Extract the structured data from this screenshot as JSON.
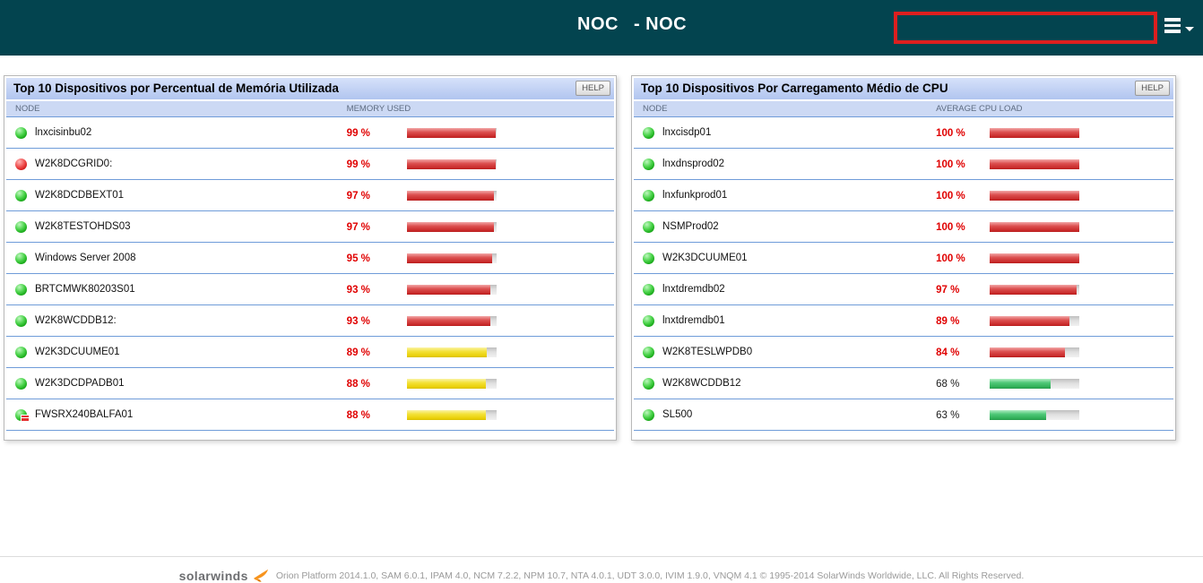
{
  "header": {
    "title": "NOC",
    "subtitle": "- NOC"
  },
  "panels": [
    {
      "title": "Top 10 Dispositivos por Percentual de Memória Utilizada",
      "help_label": "HELP",
      "columns": [
        "NODE",
        "MEMORY USED"
      ],
      "rows": [
        {
          "node": "lnxcisinbu02",
          "status": "up",
          "badge": false,
          "value": "99 %",
          "pct": 99,
          "bar": "red",
          "critical": true
        },
        {
          "node": "W2K8DCGRID0:",
          "status": "down",
          "badge": false,
          "value": "99 %",
          "pct": 99,
          "bar": "red",
          "critical": true
        },
        {
          "node": "W2K8DCDBEXT01",
          "status": "up",
          "badge": false,
          "value": "97 %",
          "pct": 97,
          "bar": "red",
          "critical": true
        },
        {
          "node": "W2K8TESTOHDS03",
          "status": "up",
          "badge": false,
          "value": "97 %",
          "pct": 97,
          "bar": "red",
          "critical": true
        },
        {
          "node": "Windows Server 2008",
          "status": "up",
          "badge": false,
          "value": "95 %",
          "pct": 95,
          "bar": "red",
          "critical": true
        },
        {
          "node": "BRTCMWK80203S01",
          "status": "up",
          "badge": false,
          "value": "93 %",
          "pct": 93,
          "bar": "red",
          "critical": true
        },
        {
          "node": "W2K8WCDDB12:",
          "status": "up",
          "badge": false,
          "value": "93 %",
          "pct": 93,
          "bar": "red",
          "critical": true
        },
        {
          "node": "W2K3DCUUME01",
          "status": "up",
          "badge": false,
          "value": "89 %",
          "pct": 89,
          "bar": "yellow",
          "critical": true
        },
        {
          "node": "W2K3DCDPADB01",
          "status": "up",
          "badge": false,
          "value": "88 %",
          "pct": 88,
          "bar": "yellow",
          "critical": true
        },
        {
          "node": "FWSRX240BALFA01",
          "status": "up",
          "badge": true,
          "value": "88 %",
          "pct": 88,
          "bar": "yellow",
          "critical": true
        }
      ]
    },
    {
      "title": "Top 10 Dispositivos Por Carregamento Médio de CPU",
      "help_label": "HELP",
      "columns": [
        "NODE",
        "AVERAGE CPU LOAD"
      ],
      "rows": [
        {
          "node": "lnxcisdp01",
          "status": "up",
          "badge": false,
          "value": "100 %",
          "pct": 100,
          "bar": "red",
          "critical": true
        },
        {
          "node": "lnxdnsprod02",
          "status": "up",
          "badge": false,
          "value": "100 %",
          "pct": 100,
          "bar": "red",
          "critical": true
        },
        {
          "node": "lnxfunkprod01",
          "status": "up",
          "badge": false,
          "value": "100 %",
          "pct": 100,
          "bar": "red",
          "critical": true
        },
        {
          "node": "NSMProd02",
          "status": "up",
          "badge": false,
          "value": "100 %",
          "pct": 100,
          "bar": "red",
          "critical": true
        },
        {
          "node": "W2K3DCUUME01",
          "status": "up",
          "badge": false,
          "value": "100 %",
          "pct": 100,
          "bar": "red",
          "critical": true
        },
        {
          "node": "lnxtdremdb02",
          "status": "up",
          "badge": false,
          "value": "97 %",
          "pct": 97,
          "bar": "red",
          "critical": true
        },
        {
          "node": "lnxtdremdb01",
          "status": "up",
          "badge": false,
          "value": "89 %",
          "pct": 89,
          "bar": "red",
          "critical": true
        },
        {
          "node": "W2K8TESLWPDB0",
          "status": "up",
          "badge": false,
          "value": "84 %",
          "pct": 84,
          "bar": "red",
          "critical": true
        },
        {
          "node": "W2K8WCDDB12",
          "status": "up",
          "badge": false,
          "value": "68 %",
          "pct": 68,
          "bar": "green",
          "critical": false
        },
        {
          "node": "SL500",
          "status": "up",
          "badge": false,
          "value": "63 %",
          "pct": 63,
          "bar": "green",
          "critical": false
        }
      ]
    }
  ],
  "footer": {
    "brand": "solarwinds",
    "text": "Orion Platform 2014.1.0, SAM 6.0.1, IPAM 4.0, NCM 7.2.2, NPM 10.7, NTA 4.0.1, UDT 3.0.0, IVIM 1.9.0, VNQM 4.1 © 1995-2014 SolarWinds Worldwide, LLC. All Rights Reserved."
  },
  "colors": {
    "header_bg": "#03444f",
    "panel_title_from": "#d6e1fa",
    "panel_title_to": "#b1c5ef",
    "col_header_bg": "#ccd9f4",
    "row_divider": "#6f9cd9",
    "critical_text": "#e00000",
    "highlight_red": "#dd1f1f"
  }
}
